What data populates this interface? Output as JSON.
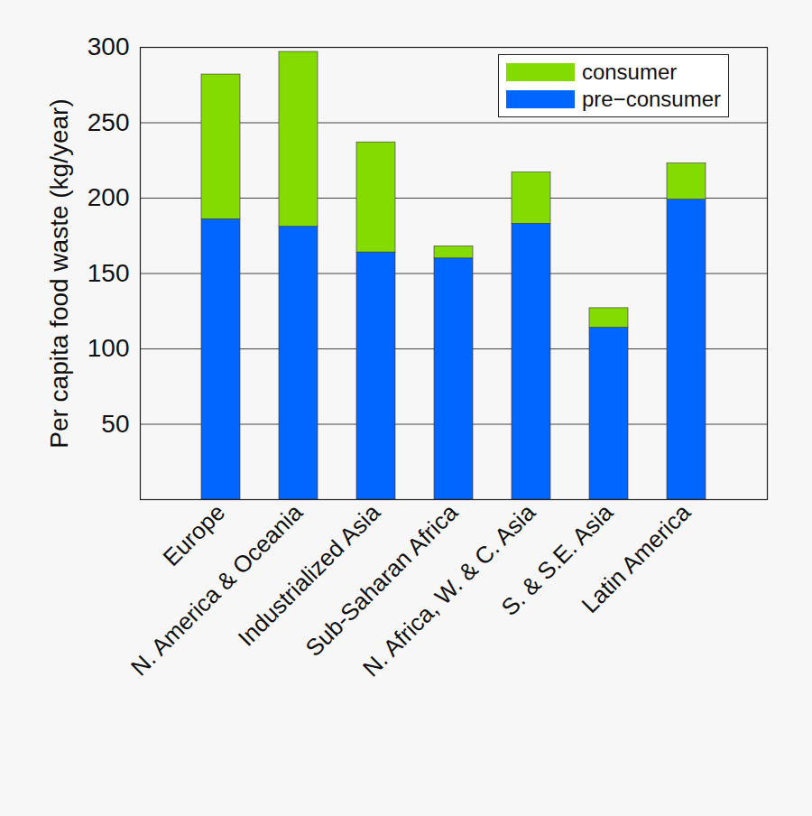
{
  "chart_data": {
    "type": "bar",
    "stacked": true,
    "y_label": "Per capita food waste (kg/year)",
    "categories": [
      "Europe",
      "N. America & Oceania",
      "Industrialized Asia",
      "Sub-Saharan Africa",
      "N. Africa, W. & C. Asia",
      "S. & S.E. Asia",
      "Latin America"
    ],
    "series": [
      {
        "name": "pre−consumer",
        "color": "#0066ff",
        "values": [
          186,
          181,
          164,
          160,
          183,
          114,
          199
        ]
      },
      {
        "name": "consumer",
        "color": "#84db00",
        "values": [
          96,
          116,
          73,
          8,
          34,
          13,
          24
        ]
      }
    ],
    "ylim": [
      0,
      300
    ],
    "yticks": [
      50,
      100,
      150,
      200,
      250,
      300
    ],
    "grid": true,
    "legend": "upper right"
  }
}
